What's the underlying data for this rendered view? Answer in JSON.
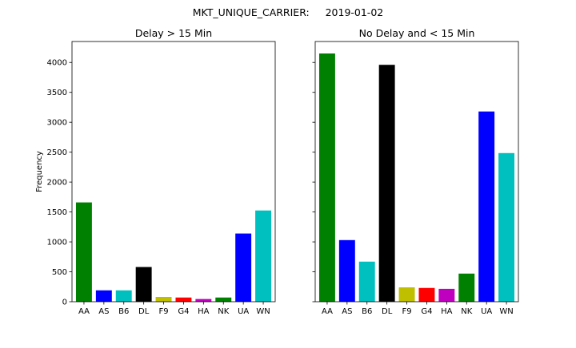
{
  "suptitle": "MKT_UNIQUE_CARRIER:     2019-01-02",
  "chart_data": [
    {
      "type": "bar",
      "title": "Delay > 15 Min",
      "ylabel": "Frequency",
      "xlabel": "",
      "categories": [
        "AA",
        "AS",
        "B6",
        "DL",
        "F9",
        "G4",
        "HA",
        "NK",
        "UA",
        "WN"
      ],
      "values": [
        1660,
        190,
        190,
        580,
        80,
        70,
        45,
        70,
        1140,
        1525
      ],
      "colors": [
        "#008000",
        "#0000ff",
        "#00bfbf",
        "#000000",
        "#bfbf00",
        "#ff0000",
        "#bf00bf",
        "#008000",
        "#0000ff",
        "#00bfbf"
      ],
      "ylim": [
        0,
        4350
      ],
      "yticks": [
        0,
        500,
        1000,
        1500,
        2000,
        2500,
        3000,
        3500,
        4000
      ],
      "show_ytick_labels": true,
      "grid": false
    },
    {
      "type": "bar",
      "title": "No Delay and < 15 Min",
      "ylabel": "",
      "xlabel": "",
      "categories": [
        "AA",
        "AS",
        "B6",
        "DL",
        "F9",
        "G4",
        "HA",
        "NK",
        "UA",
        "WN"
      ],
      "values": [
        4150,
        1030,
        670,
        3960,
        240,
        230,
        215,
        470,
        3180,
        2485
      ],
      "colors": [
        "#008000",
        "#0000ff",
        "#00bfbf",
        "#000000",
        "#bfbf00",
        "#ff0000",
        "#bf00bf",
        "#008000",
        "#0000ff",
        "#00bfbf"
      ],
      "ylim": [
        0,
        4350
      ],
      "yticks": [
        0,
        500,
        1000,
        1500,
        2000,
        2500,
        3000,
        3500,
        4000
      ],
      "show_ytick_labels": false,
      "grid": false
    }
  ]
}
